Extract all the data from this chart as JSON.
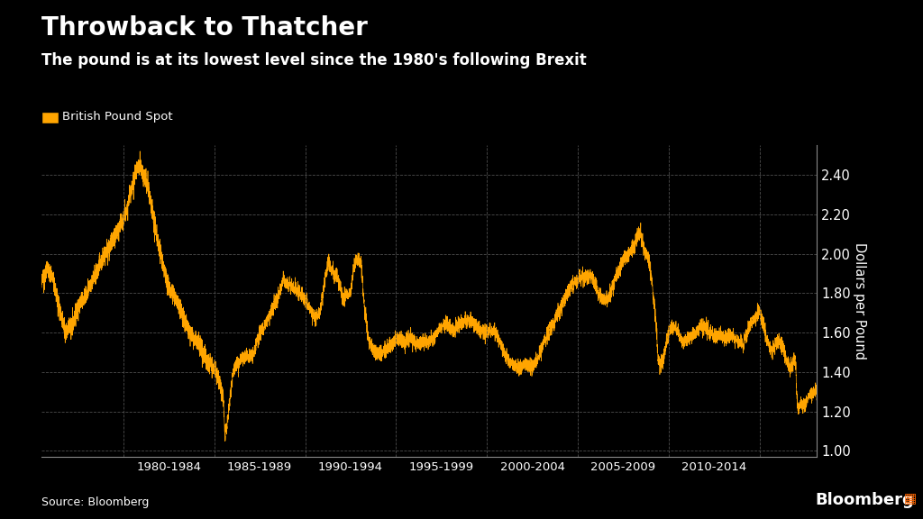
{
  "title": "Throwback to Thatcher",
  "subtitle": "The pound is at its lowest level since the 1980's following Brexit",
  "legend_label": "British Pound Spot",
  "legend_color": "#FFA500",
  "ylabel": "Dollars per Pound",
  "source": "Source: Bloomberg",
  "bg_color": "#000000",
  "text_color": "#FFFFFF",
  "line_color": "#FFA500",
  "grid_color": "#555555",
  "ylim": [
    0.97,
    2.55
  ],
  "yticks": [
    1.0,
    1.2,
    1.4,
    1.6,
    1.8,
    2.0,
    2.2,
    2.4
  ],
  "x_tick_labels": [
    "1980-1984",
    "1985-1989",
    "1990-1994",
    "1995-1999",
    "2000-2004",
    "2005-2009",
    "2010-2014"
  ],
  "x_tick_positions": [
    1982,
    1987,
    1992,
    1997,
    2002,
    2007,
    2012
  ],
  "x_dividers": [
    1979.5,
    1984.5,
    1989.5,
    1994.5,
    1999.5,
    2004.5,
    2009.5,
    2014.5
  ],
  "start_year": 1975.0,
  "end_year": 2017.65
}
